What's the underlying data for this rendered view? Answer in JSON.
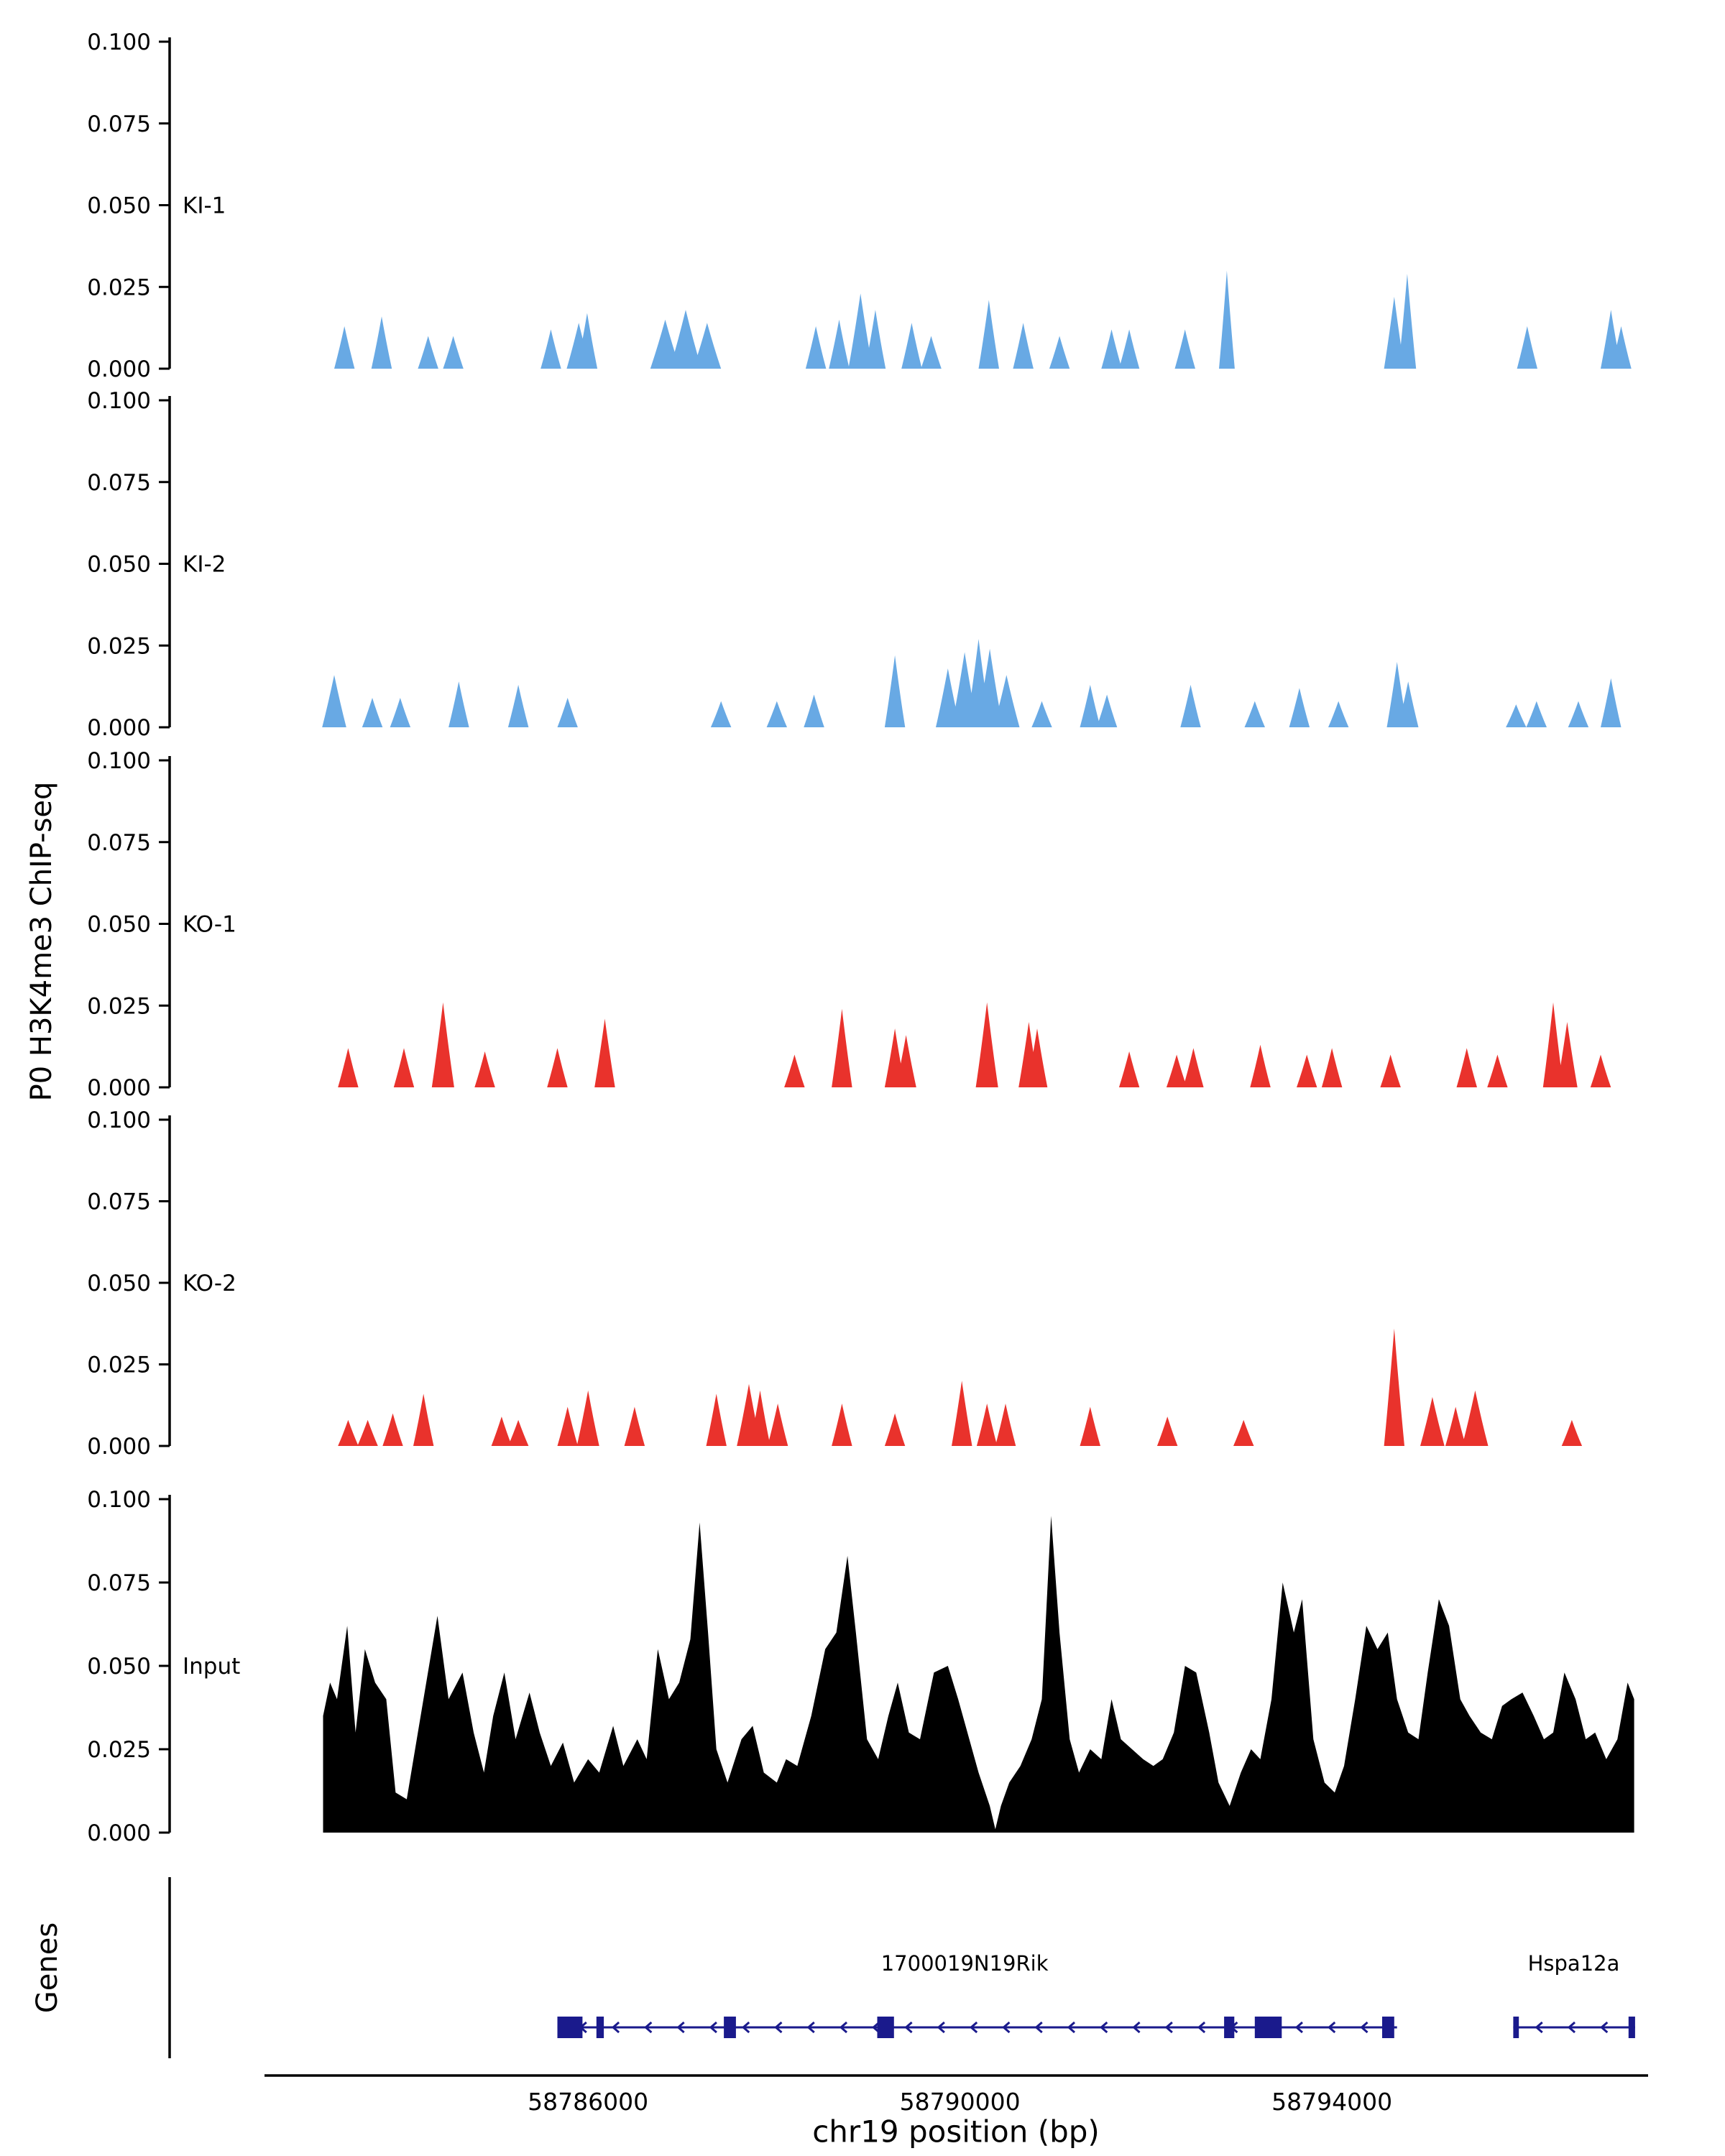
{
  "chart_data": {
    "type": "area",
    "ylabel": "P0 H3K4me3 ChIP-seq",
    "xlabel": "chr19 position (bp)",
    "genes_label": "Genes",
    "x_domain": [
      58781500,
      58797400
    ],
    "y_domain": [
      0,
      0.1
    ],
    "grid": "off",
    "yticks": {
      "labels": [
        "0.000",
        "0.025",
        "0.050",
        "0.075",
        "0.100"
      ],
      "values": [
        0,
        0.025,
        0.05,
        0.075,
        0.1
      ]
    },
    "xticks": {
      "labels": [
        "58786000",
        "58790000",
        "58794000"
      ],
      "values": [
        58786000,
        58790000,
        58794000
      ]
    },
    "accent_colors": {
      "ki": "#68A9E4",
      "ko": "#E9322C",
      "input": "#000000"
    },
    "tracks": [
      {
        "label": "KI-1",
        "color": "#68A9E4",
        "kind": "peaks",
        "peaks": [
          [
            58783380,
            0.013
          ],
          [
            58783780,
            0.016
          ],
          [
            58784280,
            0.01
          ],
          [
            58784550,
            0.01
          ],
          [
            58785600,
            0.012
          ],
          [
            58785900,
            0.014,
            130
          ],
          [
            58785990,
            0.017
          ],
          [
            58786830,
            0.015,
            160
          ],
          [
            58787050,
            0.018,
            170
          ],
          [
            58787280,
            0.014,
            150
          ],
          [
            58788450,
            0.013
          ],
          [
            58788700,
            0.015
          ],
          [
            58788930,
            0.023,
            130
          ],
          [
            58789090,
            0.018
          ],
          [
            58789480,
            0.014
          ],
          [
            58789690,
            0.01
          ],
          [
            58790310,
            0.021
          ],
          [
            58790680,
            0.014
          ],
          [
            58791070,
            0.01
          ],
          [
            58791630,
            0.012
          ],
          [
            58791820,
            0.012
          ],
          [
            58792420,
            0.012
          ],
          [
            58792870,
            0.03,
            85
          ],
          [
            58794670,
            0.022
          ],
          [
            58794810,
            0.029,
            95
          ],
          [
            58796100,
            0.013
          ],
          [
            58797000,
            0.018
          ],
          [
            58797110,
            0.013
          ]
        ]
      },
      {
        "label": "KI-2",
        "color": "#68A9E4",
        "kind": "peaks",
        "peaks": [
          [
            58783270,
            0.016,
            130
          ],
          [
            58783680,
            0.009
          ],
          [
            58783980,
            0.009
          ],
          [
            58784610,
            0.014
          ],
          [
            58785250,
            0.013
          ],
          [
            58785780,
            0.009
          ],
          [
            58787430,
            0.008
          ],
          [
            58788030,
            0.008
          ],
          [
            58788430,
            0.01
          ],
          [
            58789300,
            0.022
          ],
          [
            58789870,
            0.018,
            130
          ],
          [
            58790050,
            0.023,
            140
          ],
          [
            58790200,
            0.027,
            130
          ],
          [
            58790320,
            0.024,
            140
          ],
          [
            58790500,
            0.016,
            140
          ],
          [
            58790880,
            0.008
          ],
          [
            58791400,
            0.013
          ],
          [
            58791580,
            0.01
          ],
          [
            58792480,
            0.013
          ],
          [
            58793170,
            0.008
          ],
          [
            58793650,
            0.012
          ],
          [
            58794070,
            0.008
          ],
          [
            58794700,
            0.02
          ],
          [
            58794820,
            0.014
          ],
          [
            58795980,
            0.007
          ],
          [
            58796200,
            0.008
          ],
          [
            58796650,
            0.008
          ],
          [
            58797000,
            0.015
          ]
        ]
      },
      {
        "label": "KO-1",
        "color": "#E9322C",
        "kind": "peaks",
        "peaks": [
          [
            58783420,
            0.012
          ],
          [
            58784020,
            0.012
          ],
          [
            58784440,
            0.026,
            120
          ],
          [
            58784890,
            0.011
          ],
          [
            58785670,
            0.012
          ],
          [
            58786180,
            0.021
          ],
          [
            58788220,
            0.01
          ],
          [
            58788730,
            0.024
          ],
          [
            58789300,
            0.018
          ],
          [
            58789420,
            0.016
          ],
          [
            58790290,
            0.026,
            120
          ],
          [
            58790740,
            0.02
          ],
          [
            58790830,
            0.018
          ],
          [
            58791820,
            0.011
          ],
          [
            58792330,
            0.01
          ],
          [
            58792510,
            0.012
          ],
          [
            58793230,
            0.013
          ],
          [
            58793730,
            0.01
          ],
          [
            58794000,
            0.012
          ],
          [
            58794630,
            0.01
          ],
          [
            58795450,
            0.012
          ],
          [
            58795780,
            0.01
          ],
          [
            58796380,
            0.026
          ],
          [
            58796530,
            0.02
          ],
          [
            58796890,
            0.01
          ]
        ]
      },
      {
        "label": "KO-2",
        "color": "#E9322C",
        "kind": "peaks",
        "peaks": [
          [
            58783420,
            0.008
          ],
          [
            58783630,
            0.008
          ],
          [
            58783900,
            0.01
          ],
          [
            58784230,
            0.016
          ],
          [
            58785070,
            0.009
          ],
          [
            58785250,
            0.008
          ],
          [
            58785780,
            0.012
          ],
          [
            58786000,
            0.017,
            120
          ],
          [
            58786500,
            0.012
          ],
          [
            58787380,
            0.016
          ],
          [
            58787730,
            0.019,
            130
          ],
          [
            58787850,
            0.017
          ],
          [
            58788040,
            0.013
          ],
          [
            58788730,
            0.013
          ],
          [
            58789300,
            0.01
          ],
          [
            58790020,
            0.02
          ],
          [
            58790290,
            0.013
          ],
          [
            58790490,
            0.013
          ],
          [
            58791400,
            0.012
          ],
          [
            58792230,
            0.009
          ],
          [
            58793050,
            0.008
          ],
          [
            58794670,
            0.036,
            110
          ],
          [
            58795080,
            0.015,
            130
          ],
          [
            58795330,
            0.012
          ],
          [
            58795540,
            0.017,
            140
          ],
          [
            58796580,
            0.008
          ]
        ]
      },
      {
        "label": "Input",
        "color": "#000000",
        "kind": "profile",
        "points": [
          [
            58783150,
            0.035
          ],
          [
            58783225,
            0.045
          ],
          [
            58783300,
            0.04
          ],
          [
            58783410,
            0.062
          ],
          [
            58783500,
            0.03
          ],
          [
            58783600,
            0.055
          ],
          [
            58783710,
            0.045
          ],
          [
            58783830,
            0.04
          ],
          [
            58783930,
            0.012
          ],
          [
            58784050,
            0.01
          ],
          [
            58784170,
            0.03
          ],
          [
            58784380,
            0.065
          ],
          [
            58784500,
            0.04
          ],
          [
            58784650,
            0.048
          ],
          [
            58784770,
            0.03
          ],
          [
            58784880,
            0.018
          ],
          [
            58784980,
            0.035
          ],
          [
            58785100,
            0.048
          ],
          [
            58785220,
            0.028
          ],
          [
            58785370,
            0.042
          ],
          [
            58785480,
            0.03
          ],
          [
            58785600,
            0.02
          ],
          [
            58785730,
            0.027
          ],
          [
            58785850,
            0.015
          ],
          [
            58786000,
            0.022
          ],
          [
            58786120,
            0.018
          ],
          [
            58786270,
            0.032
          ],
          [
            58786380,
            0.02
          ],
          [
            58786530,
            0.028
          ],
          [
            58786630,
            0.022
          ],
          [
            58786750,
            0.055
          ],
          [
            58786870,
            0.04
          ],
          [
            58786980,
            0.045
          ],
          [
            58787100,
            0.058
          ],
          [
            58787200,
            0.093
          ],
          [
            58787290,
            0.06
          ],
          [
            58787380,
            0.025
          ],
          [
            58787500,
            0.015
          ],
          [
            58787650,
            0.028
          ],
          [
            58787770,
            0.032
          ],
          [
            58787890,
            0.018
          ],
          [
            58788030,
            0.015
          ],
          [
            58788130,
            0.022
          ],
          [
            58788250,
            0.02
          ],
          [
            58788400,
            0.035
          ],
          [
            58788550,
            0.055
          ],
          [
            58788670,
            0.06
          ],
          [
            58788790,
            0.083
          ],
          [
            58788880,
            0.06
          ],
          [
            58789000,
            0.028
          ],
          [
            58789120,
            0.022
          ],
          [
            58789230,
            0.035
          ],
          [
            58789330,
            0.045
          ],
          [
            58789450,
            0.03
          ],
          [
            58789570,
            0.028
          ],
          [
            58789720,
            0.048
          ],
          [
            58789870,
            0.05
          ],
          [
            58789980,
            0.04
          ],
          [
            58790080,
            0.03
          ],
          [
            58790200,
            0.018
          ],
          [
            58790320,
            0.008
          ],
          [
            58790380,
            0.001
          ],
          [
            58790440,
            0.008
          ],
          [
            58790530,
            0.015
          ],
          [
            58790650,
            0.02
          ],
          [
            58790770,
            0.028
          ],
          [
            58790880,
            0.04
          ],
          [
            58790980,
            0.095
          ],
          [
            58791070,
            0.06
          ],
          [
            58791180,
            0.028
          ],
          [
            58791280,
            0.018
          ],
          [
            58791400,
            0.025
          ],
          [
            58791520,
            0.022
          ],
          [
            58791630,
            0.04
          ],
          [
            58791730,
            0.028
          ],
          [
            58791850,
            0.025
          ],
          [
            58791970,
            0.022
          ],
          [
            58792080,
            0.02
          ],
          [
            58792180,
            0.022
          ],
          [
            58792300,
            0.03
          ],
          [
            58792420,
            0.05
          ],
          [
            58792540,
            0.048
          ],
          [
            58792680,
            0.03
          ],
          [
            58792780,
            0.015
          ],
          [
            58792900,
            0.008
          ],
          [
            58793020,
            0.018
          ],
          [
            58793130,
            0.025
          ],
          [
            58793230,
            0.022
          ],
          [
            58793350,
            0.04
          ],
          [
            58793470,
            0.075
          ],
          [
            58793590,
            0.06
          ],
          [
            58793680,
            0.07
          ],
          [
            58793800,
            0.028
          ],
          [
            58793920,
            0.015
          ],
          [
            58794030,
            0.012
          ],
          [
            58794130,
            0.02
          ],
          [
            58794250,
            0.04
          ],
          [
            58794370,
            0.062
          ],
          [
            58794490,
            0.055
          ],
          [
            58794600,
            0.06
          ],
          [
            58794700,
            0.04
          ],
          [
            58794820,
            0.03
          ],
          [
            58794930,
            0.028
          ],
          [
            58795030,
            0.048
          ],
          [
            58795150,
            0.07
          ],
          [
            58795260,
            0.062
          ],
          [
            58795380,
            0.04
          ],
          [
            58795480,
            0.035
          ],
          [
            58795600,
            0.03
          ],
          [
            58795720,
            0.028
          ],
          [
            58795830,
            0.038
          ],
          [
            58795930,
            0.04
          ],
          [
            58796050,
            0.042
          ],
          [
            58796170,
            0.035
          ],
          [
            58796280,
            0.028
          ],
          [
            58796380,
            0.03
          ],
          [
            58796500,
            0.048
          ],
          [
            58796620,
            0.04
          ],
          [
            58796730,
            0.028
          ],
          [
            58796830,
            0.03
          ],
          [
            58796950,
            0.022
          ],
          [
            58797070,
            0.028
          ],
          [
            58797180,
            0.045
          ],
          [
            58797250,
            0.04
          ]
        ]
      }
    ],
    "gene_color": "#1A1A8C",
    "genes": [
      {
        "name": "1700019N19Rik",
        "start": 58785670,
        "end": 58794700,
        "strand": "-",
        "label_x": 58790050,
        "exons": [
          [
            58785670,
            58785940
          ],
          [
            58786090,
            58786170
          ],
          [
            58787460,
            58787590
          ],
          [
            58789110,
            58789290
          ],
          [
            58792840,
            58792950
          ],
          [
            58793170,
            58793460
          ],
          [
            58794540,
            58794670
          ]
        ]
      },
      {
        "name": "Hspa12a",
        "start": 58795950,
        "end": 58797260,
        "strand": "-",
        "label_x": 58796600,
        "exons": [
          [
            58795950,
            58796010
          ],
          [
            58797190,
            58797260
          ]
        ]
      }
    ]
  }
}
